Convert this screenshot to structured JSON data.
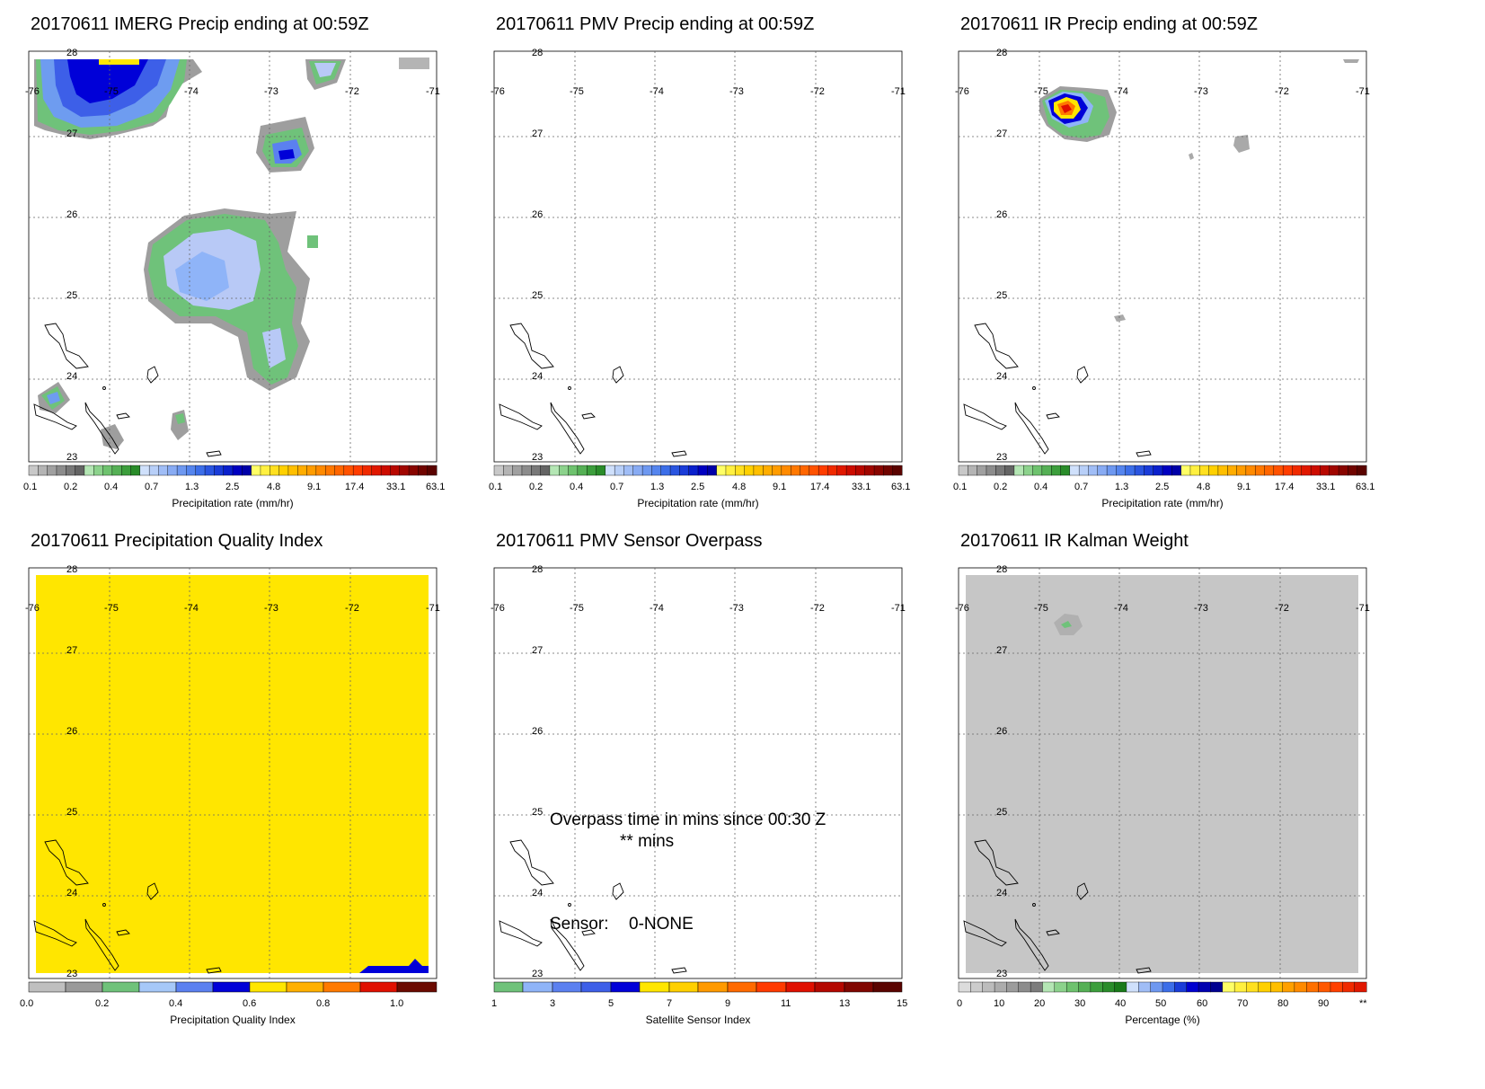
{
  "panels": [
    {
      "id": "imerg",
      "title": "20170611 IMERG Precip ending at 00:59Z",
      "colorbar": {
        "labels": [
          "0.1",
          "0.2",
          "0.4",
          "0.7",
          "1.3",
          "2.5",
          "4.8",
          "9.1",
          "17.4",
          "33.1",
          "63.1"
        ],
        "title": "Precipitation rate (mm/hr)"
      }
    },
    {
      "id": "pmv",
      "title": "20170611 PMV Precip ending at 00:59Z",
      "colorbar": {
        "labels": [
          "0.1",
          "0.2",
          "0.4",
          "0.7",
          "1.3",
          "2.5",
          "4.8",
          "9.1",
          "17.4",
          "33.1",
          "63.1"
        ],
        "title": "Precipitation rate (mm/hr)"
      }
    },
    {
      "id": "ir",
      "title": "20170611 IR Precip ending at 00:59Z",
      "colorbar": {
        "labels": [
          "0.1",
          "0.2",
          "0.4",
          "0.7",
          "1.3",
          "2.5",
          "4.8",
          "9.1",
          "17.4",
          "33.1",
          "63.1"
        ],
        "title": "Precipitation rate (mm/hr)"
      }
    },
    {
      "id": "pqi",
      "title": "20170611 Precipitation Quality Index",
      "colorbar": {
        "labels": [
          "0.0",
          "0.2",
          "0.4",
          "0.6",
          "0.8",
          "1.0"
        ],
        "title": "Precipitation Quality Index"
      }
    },
    {
      "id": "sensor",
      "title": "20170611 PMV Sensor Overpass",
      "overpass_text": "Overpass time in mins since 00:30 Z",
      "overpass_value": "** mins",
      "sensor_label": "Sensor:",
      "sensor_value": "0-NONE",
      "colorbar": {
        "labels": [
          "1",
          "3",
          "5",
          "7",
          "9",
          "11",
          "13",
          "15"
        ],
        "title": "Satellite Sensor Index"
      }
    },
    {
      "id": "kalman",
      "title": "20170611 IR Kalman Weight",
      "colorbar": {
        "labels": [
          "0",
          "10",
          "20",
          "30",
          "40",
          "50",
          "60",
          "70",
          "80",
          "90",
          "**"
        ],
        "title": "Percentage (%)"
      }
    }
  ],
  "map_axes": {
    "lon_labels": [
      "-76",
      "-75",
      "-74",
      "-73",
      "-72",
      "-71"
    ],
    "lat_labels": [
      "28",
      "27",
      "26",
      "25",
      "24",
      "23"
    ]
  },
  "colors": {
    "pqi_fill": "#ffe600",
    "kalman_fill": "#c6c6c6"
  }
}
